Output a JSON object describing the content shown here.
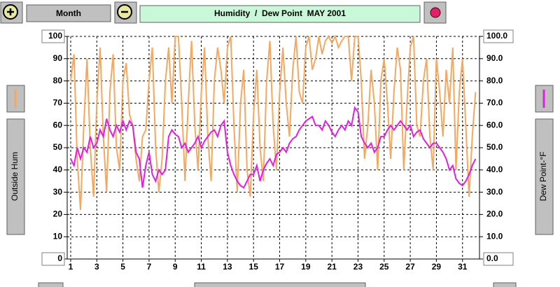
{
  "ui": {
    "period_button": "Month",
    "title": "Humidity  /  Dew Point  MAY 2001"
  },
  "chart_data": {
    "type": "line",
    "x": [
      1,
      1.25,
      1.5,
      1.75,
      2,
      2.25,
      2.5,
      2.75,
      3,
      3.25,
      3.5,
      3.75,
      4,
      4.25,
      4.5,
      4.75,
      5,
      5.25,
      5.5,
      5.75,
      6,
      6.25,
      6.5,
      6.75,
      7,
      7.25,
      7.5,
      7.75,
      8,
      8.25,
      8.5,
      8.75,
      9,
      9.25,
      9.5,
      9.75,
      10,
      10.25,
      10.5,
      10.75,
      11,
      11.25,
      11.5,
      11.75,
      12,
      12.25,
      12.5,
      12.75,
      13,
      13.25,
      13.5,
      13.75,
      14,
      14.25,
      14.5,
      14.75,
      15,
      15.25,
      15.5,
      15.75,
      16,
      16.25,
      16.5,
      16.75,
      17,
      17.25,
      17.5,
      17.75,
      18,
      18.25,
      18.5,
      18.75,
      19,
      19.25,
      19.5,
      19.75,
      20,
      20.25,
      20.5,
      20.75,
      21,
      21.25,
      21.5,
      21.75,
      22,
      22.25,
      22.5,
      22.75,
      23,
      23.25,
      23.5,
      23.75,
      24,
      24.25,
      24.5,
      24.75,
      25,
      25.25,
      25.5,
      25.75,
      26,
      26.25,
      26.5,
      26.75,
      27,
      27.25,
      27.5,
      27.75,
      28,
      28.25,
      28.5,
      28.75,
      29,
      29.25,
      29.5,
      29.75,
      30,
      30.25,
      30.5,
      30.75,
      31,
      31.25,
      31.5,
      31.75,
      32
    ],
    "series": [
      {
        "name": "Outside Hum",
        "color": "#f4a860",
        "values": [
          80,
          92,
          45,
          22,
          60,
          90,
          50,
          28,
          70,
          95,
          55,
          30,
          75,
          92,
          50,
          40,
          80,
          88,
          65,
          60,
          45,
          35,
          55,
          58,
          80,
          95,
          50,
          30,
          45,
          80,
          95,
          70,
          100,
          100,
          70,
          35,
          70,
          98,
          60,
          40,
          75,
          95,
          55,
          35,
          80,
          95,
          85,
          70,
          95,
          100,
          60,
          30,
          70,
          85,
          40,
          28,
          65,
          85,
          50,
          35,
          80,
          98,
          60,
          40,
          75,
          95,
          70,
          55,
          85,
          100,
          75,
          70,
          95,
          100,
          85,
          90,
          100,
          92,
          98,
          100,
          97,
          100,
          95,
          98,
          100,
          100,
          80,
          100,
          100,
          80,
          45,
          60,
          85,
          70,
          40,
          80,
          90,
          70,
          45,
          75,
          95,
          85,
          40,
          70,
          95,
          100,
          60,
          55,
          80,
          90,
          55,
          40,
          90,
          75,
          55,
          85,
          70,
          95,
          40,
          75,
          90,
          60,
          28,
          55,
          75
        ]
      },
      {
        "name": "Dew Point-°F",
        "color": "#e020e0",
        "axis": "y2",
        "values": [
          45,
          42,
          50,
          45,
          50,
          48,
          55,
          50,
          52,
          58,
          55,
          63,
          58,
          55,
          60,
          57,
          62,
          58,
          62,
          60,
          48,
          45,
          32,
          42,
          48,
          38,
          35,
          40,
          38,
          40,
          55,
          58,
          56,
          55,
          50,
          52,
          48,
          50,
          52,
          55,
          50,
          53,
          55,
          57,
          58,
          55,
          60,
          62,
          48,
          42,
          38,
          35,
          33,
          32,
          35,
          38,
          38,
          42,
          35,
          40,
          43,
          45,
          42,
          47,
          48,
          50,
          48,
          52,
          54,
          55,
          58,
          60,
          62,
          63,
          64,
          60,
          60,
          58,
          62,
          60,
          57,
          55,
          58,
          60,
          58,
          62,
          60,
          68,
          66,
          55,
          52,
          50,
          52,
          48,
          50,
          55,
          55,
          58,
          60,
          58,
          60,
          62,
          60,
          58,
          60,
          55,
          57,
          58,
          54,
          52,
          50,
          52,
          52,
          50,
          48,
          45,
          40,
          42,
          36,
          34,
          33,
          35,
          38,
          42,
          45
        ]
      }
    ],
    "xlim": [
      1,
      32.3
    ],
    "xticks": [
      1,
      3,
      5,
      7,
      9,
      11,
      13,
      15,
      17,
      19,
      21,
      23,
      25,
      27,
      29,
      31
    ],
    "ylim": [
      0,
      100
    ],
    "yticks": [
      0,
      10,
      20,
      30,
      40,
      50,
      60,
      70,
      80,
      90,
      100
    ],
    "y2lim": [
      0,
      100
    ],
    "y2ticks": [
      {
        "value": 0,
        "label": "0.0"
      },
      {
        "value": 10,
        "label": "10.0"
      },
      {
        "value": 20,
        "label": "20.0"
      },
      {
        "value": 30,
        "label": "30.0"
      },
      {
        "value": 40,
        "label": "40.0"
      },
      {
        "value": 50,
        "label": "50.0"
      },
      {
        "value": 60,
        "label": "60.0"
      },
      {
        "value": 70,
        "label": "70.0"
      },
      {
        "value": 80,
        "label": "80.0"
      },
      {
        "value": 90,
        "label": "90.0"
      },
      {
        "value": 100,
        "label": "100.0"
      }
    ],
    "grid": true
  }
}
